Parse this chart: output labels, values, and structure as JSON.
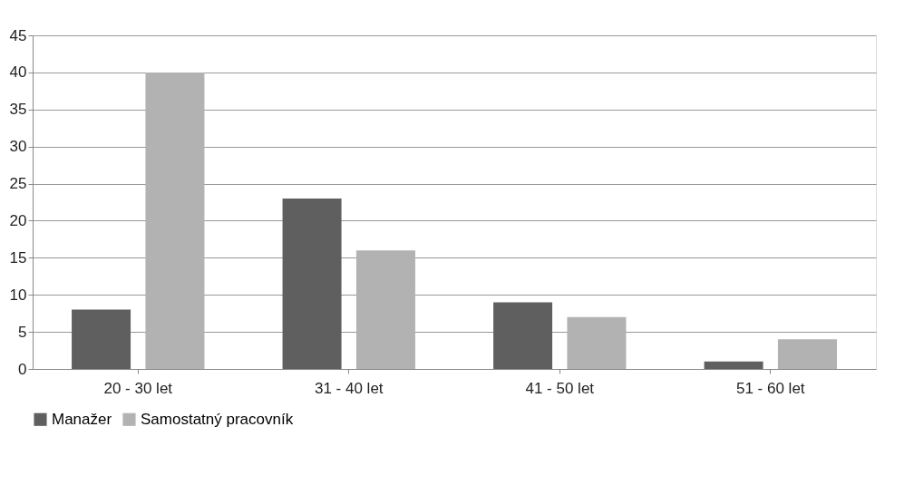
{
  "chart_data": {
    "type": "bar",
    "categories": [
      "20 - 30 let",
      "31 - 40 let",
      "41 - 50 let",
      "51 - 60 let"
    ],
    "series": [
      {
        "name": "Manažer",
        "color": "#5f5f5f",
        "values": [
          8,
          23,
          9,
          1
        ]
      },
      {
        "name": "Samostatný pracovník",
        "color": "#b2b2b2",
        "values": [
          40,
          16,
          7,
          4
        ]
      }
    ],
    "ylim": [
      0,
      45
    ],
    "yticks": [
      0,
      5,
      10,
      15,
      20,
      25,
      30,
      35,
      40,
      45
    ],
    "grid": "y",
    "legend": "bottom"
  }
}
